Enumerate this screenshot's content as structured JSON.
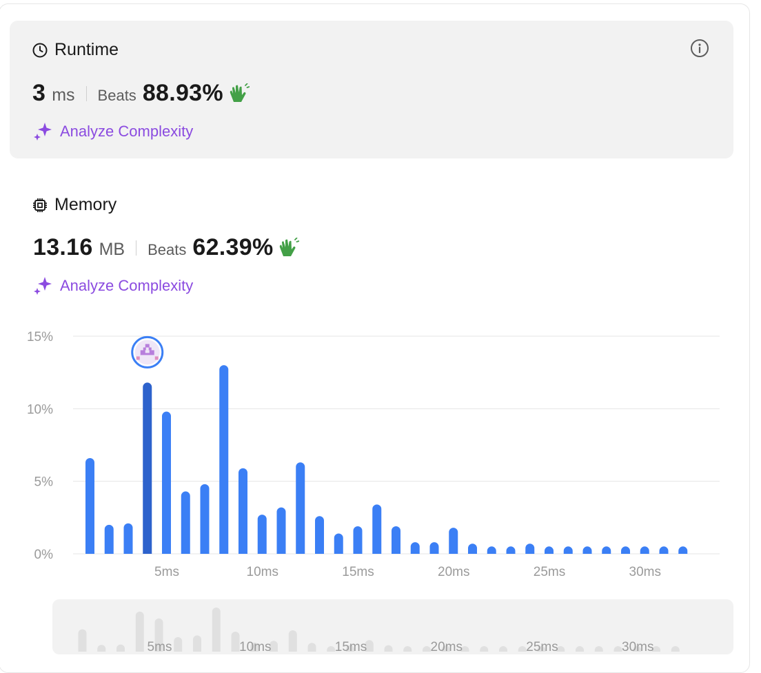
{
  "runtime": {
    "title": "Runtime",
    "value": "3",
    "unit": "ms",
    "beats_label": "Beats",
    "beats_pct": "88.93%",
    "analyze_label": "Analyze Complexity"
  },
  "memory": {
    "title": "Memory",
    "value": "13.16",
    "unit": "MB",
    "beats_label": "Beats",
    "beats_pct": "62.39%",
    "analyze_label": "Analyze Complexity"
  },
  "colors": {
    "bar": "#3b7ff5",
    "bar_selected": "#2d62cc",
    "accent_purple": "#8b4be0",
    "clap_green": "#43a047",
    "panel_bg": "#f2f2f2"
  },
  "icons": {
    "runtime": "clock-icon",
    "memory": "chip-icon",
    "info": "info-icon",
    "analyze": "sparkle-icon",
    "beats": "clap-icon",
    "marker": "user-avatar-icon"
  },
  "chart_data": {
    "type": "bar",
    "x": [
      1,
      2,
      3,
      4,
      5,
      6,
      7,
      8,
      9,
      10,
      11,
      12,
      13,
      14,
      15,
      16,
      17,
      18,
      19,
      20,
      21,
      22,
      23,
      24,
      25,
      26,
      27,
      28,
      29,
      30,
      31,
      32
    ],
    "x_unit": "ms",
    "values": [
      6.6,
      2.0,
      2.1,
      11.8,
      9.8,
      4.3,
      4.8,
      13.0,
      5.9,
      2.7,
      3.2,
      6.3,
      2.6,
      1.4,
      1.9,
      3.4,
      1.9,
      0.8,
      0.8,
      1.8,
      0.7,
      0.4,
      0.4,
      0.7,
      0.4,
      0.4,
      0.4,
      0.4,
      0.4,
      0.4,
      0.4,
      0.4
    ],
    "selected_x": 4,
    "y_ticks": [
      "0%",
      "5%",
      "10%",
      "15%"
    ],
    "y_tick_values": [
      0,
      5,
      10,
      15
    ],
    "x_ticks": [
      "5ms",
      "10ms",
      "15ms",
      "20ms",
      "25ms",
      "30ms"
    ],
    "x_tick_values": [
      5,
      10,
      15,
      20,
      25,
      30
    ],
    "ylim": [
      0,
      15
    ],
    "grid": true,
    "title": "",
    "xlabel": "",
    "ylabel": ""
  }
}
